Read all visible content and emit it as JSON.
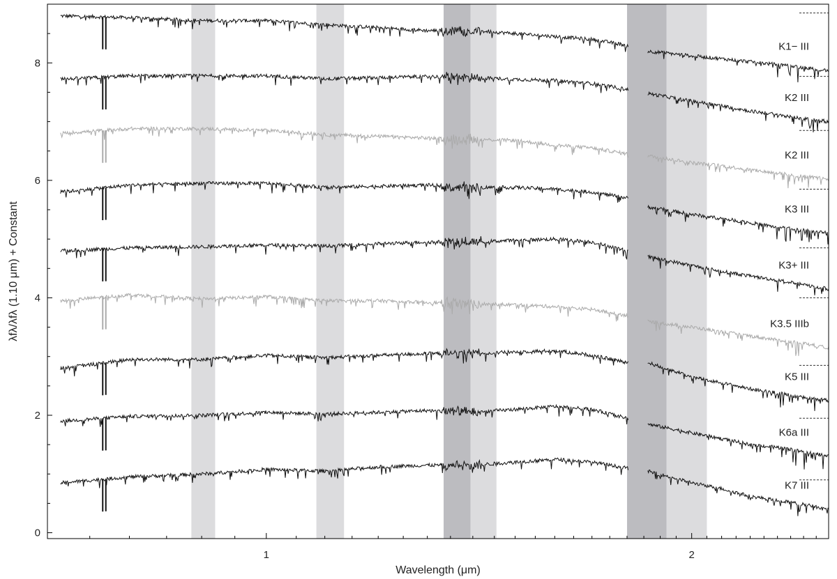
{
  "chart_data": {
    "type": "line",
    "title": "",
    "xlabel": "Wavelength (μm)",
    "ylabel": "λfλ/λfλ (1.10 μm) + Constant",
    "x_scale": "log",
    "xlim": [
      0.7,
      2.5
    ],
    "ylim": [
      -0.1,
      9.0
    ],
    "x_ticks": [
      {
        "value": 1,
        "label": "1"
      },
      {
        "value": 2,
        "label": "2"
      }
    ],
    "y_ticks": [
      {
        "value": 0,
        "label": "0"
      },
      {
        "value": 2,
        "label": "2"
      },
      {
        "value": 4,
        "label": "4"
      },
      {
        "value": 6,
        "label": "6"
      },
      {
        "value": 8,
        "label": "8"
      }
    ],
    "grid": false,
    "bands": [
      {
        "x0": 0.885,
        "x1": 0.92,
        "shade": "light"
      },
      {
        "x0": 1.085,
        "x1": 1.135,
        "shade": "light"
      },
      {
        "x0": 1.335,
        "x1": 1.395,
        "shade": "dark"
      },
      {
        "x0": 1.395,
        "x1": 1.455,
        "shade": "light"
      },
      {
        "x0": 1.8,
        "x1": 1.92,
        "shade": "dark"
      },
      {
        "x0": 1.92,
        "x1": 2.05,
        "shade": "light"
      }
    ],
    "gaps": [
      [
        1.805,
        1.86
      ]
    ],
    "series": [
      {
        "name": "K1− III",
        "color": "#111111",
        "x": [
          0.715,
          0.8,
          0.9,
          1.0,
          1.1,
          1.2,
          1.3,
          1.4,
          1.5,
          1.6,
          1.7,
          1.8,
          1.86,
          2.0,
          2.1,
          2.2,
          2.3,
          2.4,
          2.5
        ],
        "y": [
          8.8,
          8.77,
          8.72,
          8.72,
          8.65,
          8.6,
          8.55,
          8.55,
          8.5,
          8.45,
          8.4,
          8.3,
          8.2,
          8.12,
          8.07,
          8.02,
          7.97,
          7.92,
          7.87
        ]
      },
      {
        "name": "K2 III",
        "color": "#111111",
        "x": [
          0.715,
          0.8,
          0.9,
          1.0,
          1.1,
          1.2,
          1.3,
          1.4,
          1.5,
          1.6,
          1.7,
          1.8,
          1.86,
          2.0,
          2.1,
          2.2,
          2.3,
          2.4,
          2.5
        ],
        "y": [
          7.72,
          7.78,
          7.78,
          7.78,
          7.73,
          7.75,
          7.77,
          7.75,
          7.72,
          7.7,
          7.65,
          7.55,
          7.48,
          7.35,
          7.27,
          7.18,
          7.12,
          7.05,
          7.0
        ]
      },
      {
        "name": "K2 III",
        "color": "#aaaaaa",
        "x": [
          0.715,
          0.8,
          0.9,
          1.0,
          1.1,
          1.2,
          1.3,
          1.4,
          1.5,
          1.6,
          1.7,
          1.8,
          1.86,
          2.0,
          2.1,
          2.2,
          2.3,
          2.4,
          2.5
        ],
        "y": [
          6.8,
          6.88,
          6.88,
          6.85,
          6.78,
          6.75,
          6.72,
          6.7,
          6.68,
          6.6,
          6.55,
          6.45,
          6.42,
          6.3,
          6.25,
          6.18,
          6.12,
          6.07,
          6.02
        ]
      },
      {
        "name": "K3 III",
        "color": "#111111",
        "x": [
          0.715,
          0.8,
          0.9,
          1.0,
          1.1,
          1.2,
          1.3,
          1.4,
          1.5,
          1.6,
          1.7,
          1.8,
          1.86,
          2.0,
          2.1,
          2.2,
          2.3,
          2.4,
          2.5
        ],
        "y": [
          5.8,
          5.92,
          5.95,
          5.95,
          5.88,
          5.9,
          5.92,
          5.88,
          5.88,
          5.85,
          5.8,
          5.7,
          5.55,
          5.42,
          5.35,
          5.28,
          5.2,
          5.15,
          5.1
        ]
      },
      {
        "name": "K3+ III",
        "color": "#111111",
        "x": [
          0.715,
          0.8,
          0.9,
          1.0,
          1.1,
          1.2,
          1.3,
          1.4,
          1.5,
          1.6,
          1.7,
          1.8,
          1.86,
          2.0,
          2.1,
          2.2,
          2.3,
          2.4,
          2.5
        ],
        "y": [
          4.8,
          4.85,
          4.87,
          4.9,
          4.88,
          4.92,
          4.95,
          4.95,
          4.98,
          5.0,
          4.95,
          4.8,
          4.7,
          4.55,
          4.45,
          4.37,
          4.3,
          4.22,
          4.15
        ]
      },
      {
        "name": "K3.5 IIIb",
        "color": "#aaaaaa",
        "x": [
          0.715,
          0.8,
          0.9,
          1.0,
          1.1,
          1.2,
          1.3,
          1.4,
          1.5,
          1.6,
          1.7,
          1.8,
          1.86,
          2.0,
          2.1,
          2.2,
          2.3,
          2.4,
          2.5
        ],
        "y": [
          3.95,
          4.05,
          3.98,
          4.02,
          3.95,
          3.95,
          3.92,
          3.9,
          3.88,
          3.85,
          3.8,
          3.7,
          3.6,
          3.5,
          3.42,
          3.35,
          3.28,
          3.22,
          3.15
        ]
      },
      {
        "name": "K5 III",
        "color": "#111111",
        "x": [
          0.715,
          0.8,
          0.9,
          1.0,
          1.1,
          1.2,
          1.3,
          1.4,
          1.5,
          1.6,
          1.7,
          1.8,
          1.86,
          2.0,
          2.1,
          2.2,
          2.3,
          2.4,
          2.5
        ],
        "y": [
          2.8,
          2.95,
          2.95,
          3.02,
          2.98,
          3.02,
          3.05,
          3.05,
          3.08,
          3.1,
          3.02,
          2.9,
          2.9,
          2.65,
          2.55,
          2.45,
          2.38,
          2.3,
          2.25
        ]
      },
      {
        "name": "K6a III",
        "color": "#111111",
        "x": [
          0.715,
          0.8,
          0.9,
          1.0,
          1.1,
          1.2,
          1.3,
          1.4,
          1.5,
          1.6,
          1.7,
          1.8,
          1.86,
          2.0,
          2.1,
          2.2,
          2.3,
          2.4,
          2.5
        ],
        "y": [
          1.9,
          1.98,
          2.0,
          2.05,
          2.02,
          2.05,
          2.08,
          2.05,
          2.1,
          2.15,
          2.1,
          1.95,
          1.85,
          1.7,
          1.6,
          1.5,
          1.45,
          1.38,
          1.3
        ]
      },
      {
        "name": "K7 III",
        "color": "#111111",
        "x": [
          0.715,
          0.8,
          0.9,
          1.0,
          1.1,
          1.2,
          1.3,
          1.4,
          1.5,
          1.6,
          1.7,
          1.8,
          1.86,
          2.0,
          2.1,
          2.2,
          2.3,
          2.4,
          2.5
        ],
        "y": [
          0.85,
          0.95,
          1.0,
          1.08,
          1.05,
          1.12,
          1.15,
          1.15,
          1.2,
          1.25,
          1.2,
          1.1,
          1.05,
          0.85,
          0.75,
          0.62,
          0.55,
          0.48,
          0.4
        ]
      }
    ]
  }
}
